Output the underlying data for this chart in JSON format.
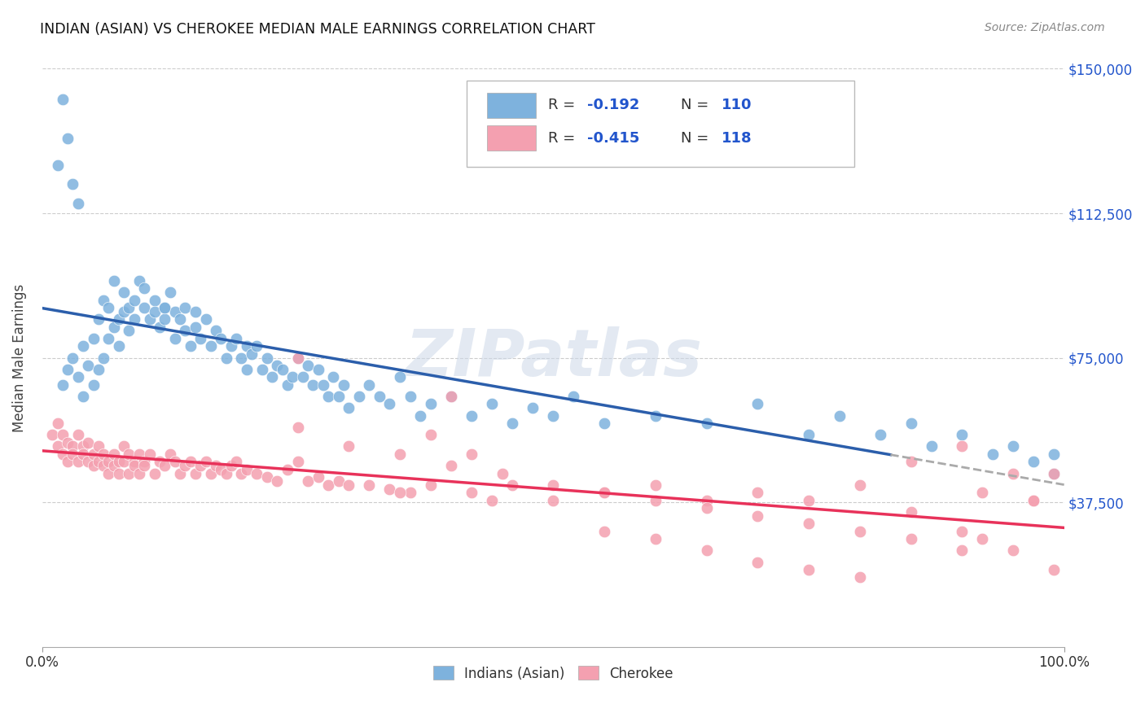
{
  "title": "INDIAN (ASIAN) VS CHEROKEE MEDIAN MALE EARNINGS CORRELATION CHART",
  "source": "Source: ZipAtlas.com",
  "ylabel": "Median Male Earnings",
  "ytick_vals": [
    37500,
    75000,
    112500,
    150000
  ],
  "ytick_labels": [
    "$37,500",
    "$75,000",
    "$112,500",
    "$150,000"
  ],
  "xmin": 0.0,
  "xmax": 1.0,
  "ymin": 0,
  "ymax": 150000,
  "blue_color": "#7EB2DD",
  "pink_color": "#F4A0B0",
  "blue_line_color": "#2B5EAB",
  "pink_line_color": "#E8325A",
  "dash_line_color": "#aaaaaa",
  "blue_R": -0.192,
  "blue_N": 110,
  "pink_R": -0.415,
  "pink_N": 118,
  "legend_val_color": "#2255CC",
  "legend_text_color": "#333333",
  "watermark": "ZIPatlas",
  "legend_label1": "Indians (Asian)",
  "legend_label2": "Cherokee",
  "blue_scatter_x": [
    0.02,
    0.025,
    0.03,
    0.035,
    0.04,
    0.04,
    0.045,
    0.05,
    0.05,
    0.055,
    0.055,
    0.06,
    0.06,
    0.065,
    0.065,
    0.07,
    0.07,
    0.075,
    0.075,
    0.08,
    0.08,
    0.085,
    0.085,
    0.09,
    0.09,
    0.095,
    0.1,
    0.1,
    0.105,
    0.11,
    0.11,
    0.115,
    0.12,
    0.12,
    0.125,
    0.13,
    0.13,
    0.135,
    0.14,
    0.14,
    0.145,
    0.15,
    0.15,
    0.155,
    0.16,
    0.165,
    0.17,
    0.175,
    0.18,
    0.185,
    0.19,
    0.195,
    0.2,
    0.2,
    0.205,
    0.21,
    0.215,
    0.22,
    0.225,
    0.23,
    0.235,
    0.24,
    0.245,
    0.25,
    0.255,
    0.26,
    0.265,
    0.27,
    0.275,
    0.28,
    0.285,
    0.29,
    0.295,
    0.3,
    0.31,
    0.32,
    0.33,
    0.34,
    0.35,
    0.36,
    0.37,
    0.38,
    0.4,
    0.42,
    0.44,
    0.46,
    0.48,
    0.5,
    0.52,
    0.55,
    0.6,
    0.65,
    0.7,
    0.75,
    0.78,
    0.82,
    0.85,
    0.87,
    0.9,
    0.93,
    0.95,
    0.97,
    0.99,
    0.99,
    0.02,
    0.015,
    0.025,
    0.03,
    0.035,
    0.12
  ],
  "blue_scatter_y": [
    68000,
    72000,
    75000,
    70000,
    78000,
    65000,
    73000,
    80000,
    68000,
    85000,
    72000,
    90000,
    75000,
    88000,
    80000,
    95000,
    83000,
    85000,
    78000,
    87000,
    92000,
    88000,
    82000,
    90000,
    85000,
    95000,
    88000,
    93000,
    85000,
    90000,
    87000,
    83000,
    88000,
    85000,
    92000,
    87000,
    80000,
    85000,
    88000,
    82000,
    78000,
    83000,
    87000,
    80000,
    85000,
    78000,
    82000,
    80000,
    75000,
    78000,
    80000,
    75000,
    78000,
    72000,
    76000,
    78000,
    72000,
    75000,
    70000,
    73000,
    72000,
    68000,
    70000,
    75000,
    70000,
    73000,
    68000,
    72000,
    68000,
    65000,
    70000,
    65000,
    68000,
    62000,
    65000,
    68000,
    65000,
    63000,
    70000,
    65000,
    60000,
    63000,
    65000,
    60000,
    63000,
    58000,
    62000,
    60000,
    65000,
    58000,
    60000,
    58000,
    63000,
    55000,
    60000,
    55000,
    58000,
    52000,
    55000,
    50000,
    52000,
    48000,
    50000,
    45000,
    142000,
    125000,
    132000,
    120000,
    115000,
    88000
  ],
  "pink_scatter_x": [
    0.01,
    0.015,
    0.015,
    0.02,
    0.02,
    0.025,
    0.025,
    0.03,
    0.03,
    0.035,
    0.035,
    0.04,
    0.04,
    0.045,
    0.045,
    0.05,
    0.05,
    0.055,
    0.055,
    0.06,
    0.06,
    0.065,
    0.065,
    0.07,
    0.07,
    0.075,
    0.075,
    0.08,
    0.08,
    0.085,
    0.085,
    0.09,
    0.09,
    0.095,
    0.095,
    0.1,
    0.1,
    0.105,
    0.11,
    0.115,
    0.12,
    0.125,
    0.13,
    0.135,
    0.14,
    0.145,
    0.15,
    0.155,
    0.16,
    0.165,
    0.17,
    0.175,
    0.18,
    0.185,
    0.19,
    0.195,
    0.2,
    0.21,
    0.22,
    0.23,
    0.24,
    0.25,
    0.26,
    0.27,
    0.28,
    0.29,
    0.3,
    0.32,
    0.34,
    0.36,
    0.38,
    0.4,
    0.42,
    0.44,
    0.46,
    0.5,
    0.55,
    0.6,
    0.65,
    0.7,
    0.75,
    0.8,
    0.85,
    0.9,
    0.92,
    0.95,
    0.97,
    0.99,
    0.25,
    0.3,
    0.35,
    0.4,
    0.45,
    0.5,
    0.55,
    0.6,
    0.65,
    0.7,
    0.75,
    0.8,
    0.85,
    0.9,
    0.55,
    0.6,
    0.65,
    0.7,
    0.75,
    0.8,
    0.85,
    0.9,
    0.92,
    0.95,
    0.97,
    0.99,
    0.35,
    0.38,
    0.42,
    0.25
  ],
  "pink_scatter_y": [
    55000,
    52000,
    58000,
    50000,
    55000,
    48000,
    53000,
    52000,
    50000,
    55000,
    48000,
    52000,
    50000,
    48000,
    53000,
    50000,
    47000,
    52000,
    48000,
    50000,
    47000,
    48000,
    45000,
    50000,
    47000,
    48000,
    45000,
    52000,
    48000,
    50000,
    45000,
    48000,
    47000,
    50000,
    45000,
    48000,
    47000,
    50000,
    45000,
    48000,
    47000,
    50000,
    48000,
    45000,
    47000,
    48000,
    45000,
    47000,
    48000,
    45000,
    47000,
    46000,
    45000,
    47000,
    48000,
    45000,
    46000,
    45000,
    44000,
    43000,
    46000,
    75000,
    43000,
    44000,
    42000,
    43000,
    42000,
    42000,
    41000,
    40000,
    42000,
    65000,
    40000,
    38000,
    42000,
    38000,
    40000,
    42000,
    38000,
    40000,
    38000,
    42000,
    48000,
    52000,
    40000,
    45000,
    38000,
    20000,
    57000,
    52000,
    50000,
    47000,
    45000,
    42000,
    40000,
    38000,
    36000,
    34000,
    32000,
    30000,
    28000,
    25000,
    30000,
    28000,
    25000,
    22000,
    20000,
    18000,
    35000,
    30000,
    28000,
    25000,
    38000,
    45000,
    40000,
    55000,
    50000,
    48000
  ]
}
